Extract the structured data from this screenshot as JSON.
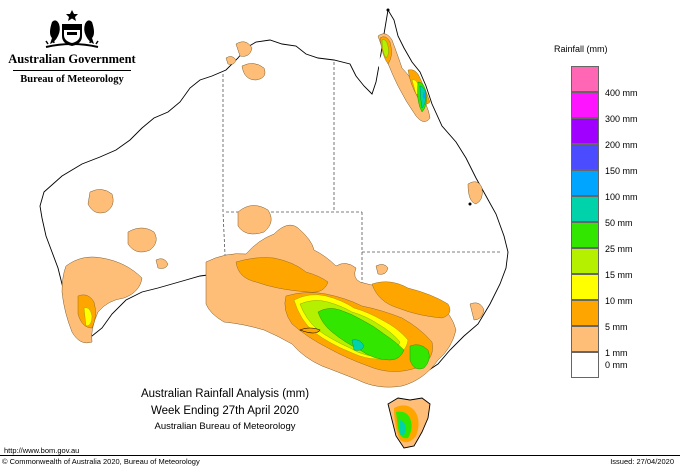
{
  "header": {
    "government": "Australian Government",
    "bureau": "Bureau of Meteorology"
  },
  "legend": {
    "title": "Rainfall (mm)",
    "items": [
      {
        "label": "400 mm",
        "color": "#ff66b3"
      },
      {
        "label": "300 mm",
        "color": "#ff14ff"
      },
      {
        "label": "200 mm",
        "color": "#a000ff"
      },
      {
        "label": "150 mm",
        "color": "#4b4bff"
      },
      {
        "label": "100 mm",
        "color": "#00a5ff"
      },
      {
        "label": "50 mm",
        "color": "#00d2aa"
      },
      {
        "label": "25 mm",
        "color": "#32e600"
      },
      {
        "label": "15 mm",
        "color": "#b4f000"
      },
      {
        "label": "10 mm",
        "color": "#ffff00"
      },
      {
        "label": "5 mm",
        "color": "#ffa500"
      },
      {
        "label": "1 mm",
        "color": "#ffbe78"
      },
      {
        "label": "0 mm",
        "color": "#ffffff"
      }
    ]
  },
  "caption": {
    "title": "Australian Rainfall Analysis (mm)",
    "week": "Week Ending 27th April 2020",
    "org": "Australian Bureau of Meteorology"
  },
  "footer": {
    "url": "http://www.bom.gov.au",
    "copyright": "© Commonwealth of Australia 2020, Bureau of Meteorology",
    "issued": "Issued: 27/04/2020"
  }
}
